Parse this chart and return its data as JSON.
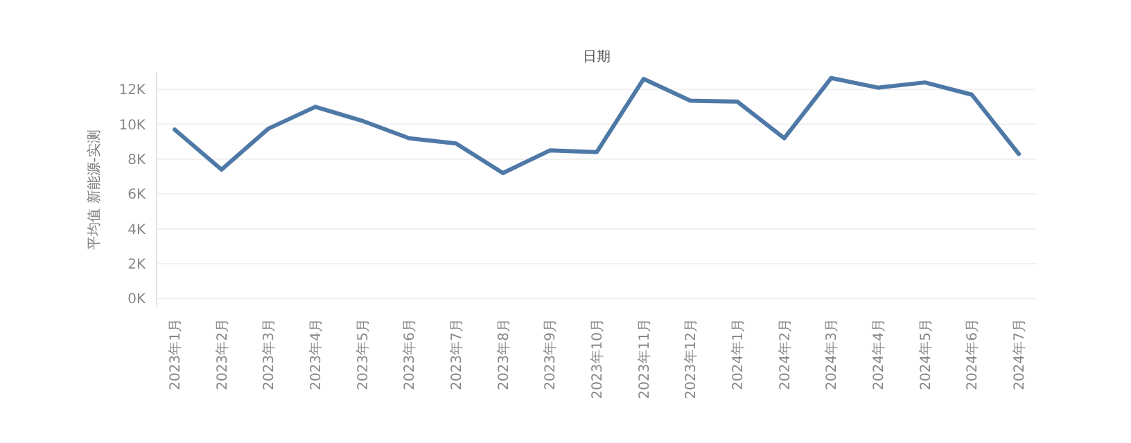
{
  "chart_data": {
    "type": "line",
    "title": "日期",
    "ylabel": "平均值 新能源-实测",
    "categories": [
      "2023年1月",
      "2023年2月",
      "2023年3月",
      "2023年4月",
      "2023年5月",
      "2023年6月",
      "2023年7月",
      "2023年8月",
      "2023年9月",
      "2023年10月",
      "2023年11月",
      "2023年12月",
      "2024年1月",
      "2024年2月",
      "2024年3月",
      "2024年4月",
      "2024年5月",
      "2024年6月",
      "2024年7月"
    ],
    "series": [
      {
        "color": "#4e79a7",
        "values": [
          9700,
          7400,
          9750,
          11000,
          10200,
          9200,
          8900,
          7200,
          8500,
          8400,
          12600,
          11350,
          11300,
          9200,
          12650,
          12100,
          12400,
          11700,
          8300
        ]
      }
    ],
    "ylim": [
      -500,
      13000
    ],
    "yticks": [
      {
        "value": 0,
        "label": "0K"
      },
      {
        "value": 2000,
        "label": "2K"
      },
      {
        "value": 4000,
        "label": "4K"
      },
      {
        "value": 6000,
        "label": "6K"
      },
      {
        "value": 8000,
        "label": "8K"
      },
      {
        "value": 10000,
        "label": "10K"
      },
      {
        "value": 12000,
        "label": "12K"
      }
    ],
    "grid": "y",
    "marker": "none",
    "line_style": "solid"
  }
}
